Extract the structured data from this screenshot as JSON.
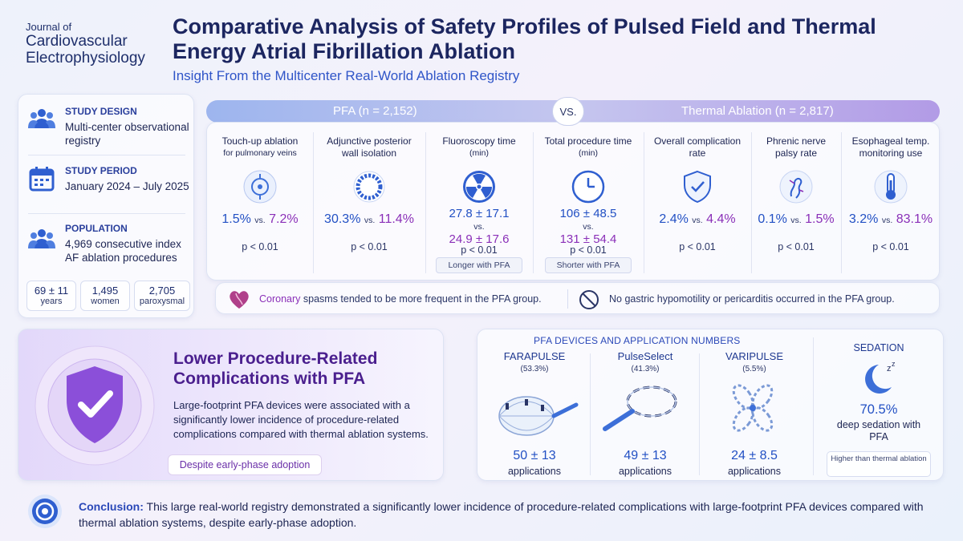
{
  "journal": {
    "line1": "Journal of",
    "line2": "Cardiovascular",
    "line3": "Electrophysiology"
  },
  "title": "Comparative Analysis of Safety Profiles of Pulsed Field and Thermal Energy Atrial Fibrillation Ablation",
  "subtitle": "Insight From the Multicenter Real-World Ablation Registry",
  "study": {
    "design_label": "STUDY DESIGN",
    "design_value": "Multi-center observational registry",
    "period_label": "STUDY PERIOD",
    "period_value": "January 2024 – July 2025",
    "population_label": "POPULATION",
    "population_value": "4,969 consecutive index AF ablation procedures",
    "stats": [
      {
        "value": "69 ± 11",
        "label": "years"
      },
      {
        "value": "1,495",
        "label": "women"
      },
      {
        "value": "2,705",
        "label": "paroxysmal"
      }
    ]
  },
  "comparison": {
    "pfa_label": "PFA (n = 2,152)",
    "vs_label": "VS.",
    "thermal_label": "Thermal Ablation (n = 2,817)",
    "vs_small": "vs.",
    "metrics": [
      {
        "title": "Touch-up ablation",
        "sub": "for pulmonary veins",
        "pfa": "1.5%",
        "thermal": "7.2%",
        "p": "p < 0.01",
        "icon": "target-icon"
      },
      {
        "title": "Adjunctive posterior",
        "sub": "wall isolation",
        "pfa": "30.3%",
        "thermal": "11.4%",
        "p": "p < 0.01",
        "icon": "ring-icon"
      },
      {
        "title": "Fluoroscopy time",
        "sub": "(min)",
        "pfa": "27.8 ± 17.1",
        "thermal": "24.9 ± 17.6",
        "p": "p < 0.01",
        "tag": "Longer with PFA",
        "icon": "radiation-icon"
      },
      {
        "title": "Total procedure time",
        "sub": "(min)",
        "pfa": "106 ± 48.5",
        "thermal": "131 ± 54.4",
        "p": "p < 0.01",
        "tag": "Shorter with PFA",
        "icon": "clock-icon"
      },
      {
        "title": "Overall complication",
        "sub": "rate",
        "pfa": "2.4%",
        "thermal": "4.4%",
        "p": "p < 0.01",
        "icon": "shield-check-icon"
      },
      {
        "title": "Phrenic nerve",
        "sub": "palsy rate",
        "pfa": "0.1%",
        "thermal": "1.5%",
        "p": "p < 0.01",
        "icon": "nerve-icon"
      },
      {
        "title": "Esophageal temp.",
        "sub": "monitoring use",
        "pfa": "3.2%",
        "thermal": "83.1%",
        "p": "p < 0.01",
        "icon": "thermometer-icon"
      }
    ]
  },
  "notes": {
    "coronary_word": "Coronary",
    "coronary_rest": " spasms tended to be more frequent in the PFA group.",
    "gastric": "No gastric hypomotility or pericarditis occurred in the PFA group."
  },
  "highlight": {
    "title": "Lower Procedure-Related Complications with PFA",
    "body": "Large-footprint PFA devices were associated with a significantly lower incidence of procedure-related complications compared with thermal ablation systems.",
    "tag": "Despite early-phase adoption"
  },
  "devices": {
    "heading": "PFA DEVICES AND APPLICATION NUMBERS",
    "items": [
      {
        "name": "FARAPULSE",
        "pct": "(53.3%)",
        "value": "50 ± 13",
        "unit": "applications"
      },
      {
        "name": "PulseSelect",
        "pct": "(41.3%)",
        "value": "49 ± 13",
        "unit": "applications"
      },
      {
        "name": "VARIPULSE",
        "pct": "(5.5%)",
        "value": "24 ± 8.5",
        "unit": "applications"
      }
    ],
    "sedation": {
      "heading": "SEDATION",
      "value": "70.5%",
      "desc": "deep sedation with PFA",
      "tag": "Higher than thermal ablation"
    }
  },
  "conclusion": {
    "label": "Conclusion:",
    "text": " This large real-world registry demonstrated a significantly lower incidence of procedure-related complications with large-footprint PFA devices compared with thermal ablation systems, despite early-phase adoption."
  },
  "colors": {
    "pfa": "#2250c4",
    "thermal": "#8a2fb8",
    "title": "#1c2660",
    "accent": "#4a1f8e"
  }
}
